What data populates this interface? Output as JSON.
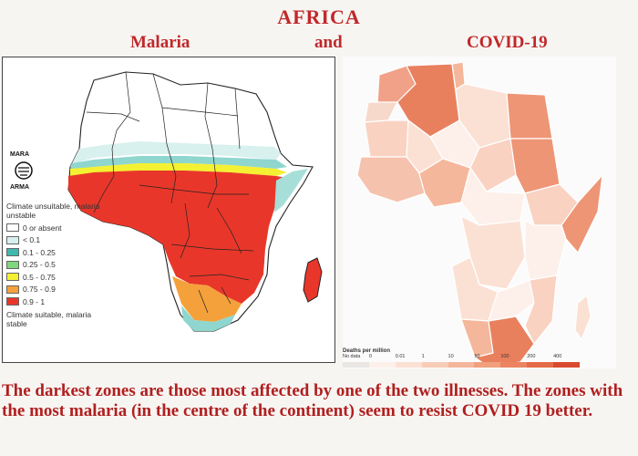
{
  "header": {
    "title": "AFRICA",
    "left_label": "Malaria",
    "connector": "and",
    "right_label": "COVID-19"
  },
  "malaria_map": {
    "logo_text_top": "MARA",
    "logo_text_bottom": "ARMA",
    "legend_caption_top": "Climate unsuitable, malaria unstable",
    "legend_caption_bottom": "Climate suitable, malaria stable",
    "legend": [
      {
        "label": "0     or absent",
        "color": "#ffffff"
      },
      {
        "label": "< 0.1",
        "color": "#d8f0ee"
      },
      {
        "label": "0.1 - 0.25",
        "color": "#3fb9ae"
      },
      {
        "label": "0.25 - 0.5",
        "color": "#7fd67c"
      },
      {
        "label": "0.5 - 0.75",
        "color": "#f4f032"
      },
      {
        "label": "0.75 - 0.9",
        "color": "#f5a13b"
      },
      {
        "label": "0.9 - 1",
        "color": "#e8372a"
      }
    ]
  },
  "covid_map": {
    "ramp_title": "Deaths per million",
    "ramp_labels": [
      "No data",
      "0",
      "0.01",
      "1",
      "10",
      "50",
      "100",
      "200",
      "400"
    ],
    "ramp_colors": [
      "#e9e6e4",
      "#fdf0ea",
      "#fbe1d4",
      "#f8cdb7",
      "#f5b79b",
      "#f19f7d",
      "#ec8461",
      "#e56a48",
      "#d84a2f"
    ]
  },
  "caption": "The darkest zones are those most affected by one of the two illnesses. The zones with the most malaria (in the centre of the continent) seem to resist COVID 19 better."
}
